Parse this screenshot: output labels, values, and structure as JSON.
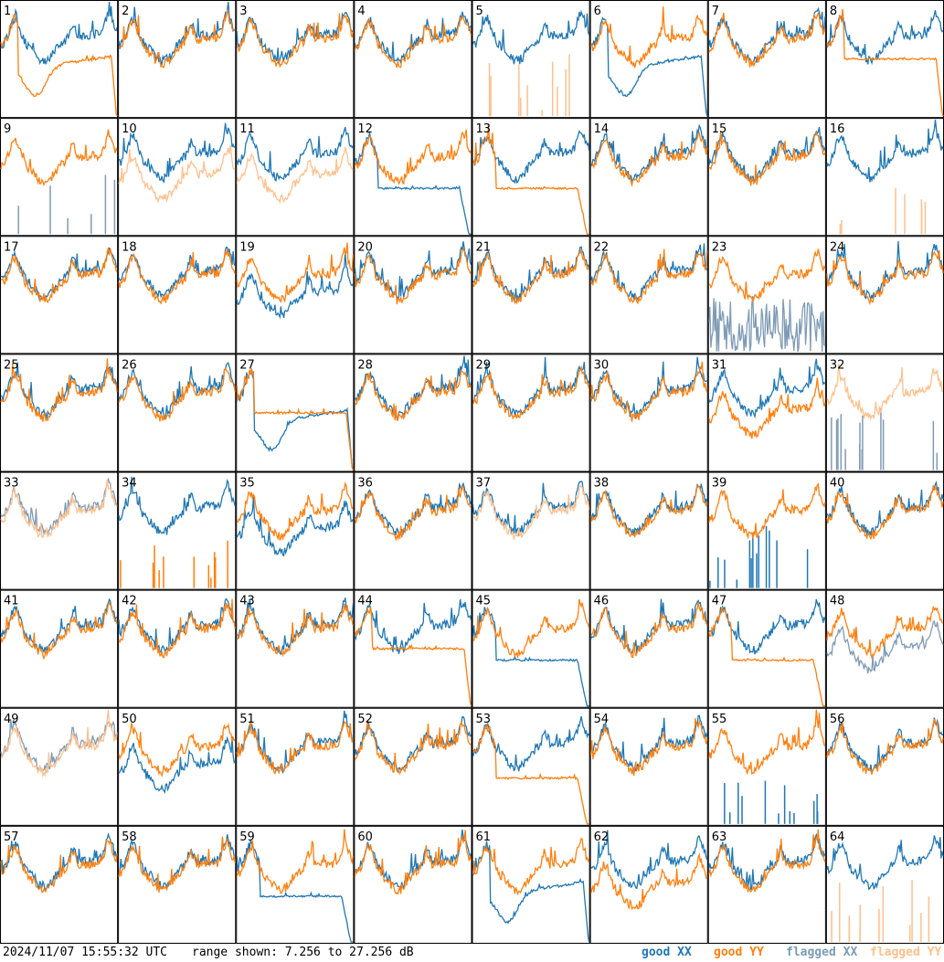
{
  "footer": {
    "timestamp": "2024/11/07 15:55:32 UTC",
    "range_text": "range shown: 7.256 to 27.256 dB"
  },
  "legend": {
    "good_xx": "good XX",
    "good_yy": "good YY",
    "flagged_xx": "flagged XX",
    "flagged_yy": "flagged YY"
  },
  "colors": {
    "good_xx": "#1f77b4",
    "good_yy": "#ff7f0e",
    "flagged_xx": "#7f9bb5",
    "flagged_yy": "#ffc08c"
  },
  "chart_data": {
    "type": "line",
    "layout": "8x8 small multiples",
    "y_range_db": [
      7.256,
      27.256
    ],
    "series_names": [
      "good XX",
      "good YY",
      "flagged XX",
      "flagged YY"
    ],
    "panels": [
      {
        "id": "1",
        "xx": {
          "state": "good",
          "shape": "normal"
        },
        "yy": {
          "state": "good",
          "shape": "sag"
        }
      },
      {
        "id": "2",
        "xx": {
          "state": "good",
          "shape": "normal"
        },
        "yy": {
          "state": "good",
          "shape": "normal"
        }
      },
      {
        "id": "3",
        "xx": {
          "state": "good",
          "shape": "normal"
        },
        "yy": {
          "state": "good",
          "shape": "normal"
        }
      },
      {
        "id": "4",
        "xx": {
          "state": "good",
          "shape": "normal"
        },
        "yy": {
          "state": "good",
          "shape": "normal"
        }
      },
      {
        "id": "5",
        "xx": {
          "state": "good",
          "shape": "normal"
        },
        "yy": {
          "state": "flagged",
          "shape": "spikes"
        }
      },
      {
        "id": "6",
        "xx": {
          "state": "good",
          "shape": "sag"
        },
        "yy": {
          "state": "good",
          "shape": "normal"
        }
      },
      {
        "id": "7",
        "xx": {
          "state": "good",
          "shape": "normal"
        },
        "yy": {
          "state": "good",
          "shape": "normal"
        }
      },
      {
        "id": "8",
        "xx": {
          "state": "good",
          "shape": "normal"
        },
        "yy": {
          "state": "good",
          "shape": "plateau"
        }
      },
      {
        "id": "9",
        "xx": {
          "state": "flagged",
          "shape": "spikes"
        },
        "yy": {
          "state": "good",
          "shape": "normal"
        }
      },
      {
        "id": "10",
        "xx": {
          "state": "good",
          "shape": "normal"
        },
        "yy": {
          "state": "flagged",
          "shape": "low"
        }
      },
      {
        "id": "11",
        "xx": {
          "state": "good",
          "shape": "normal"
        },
        "yy": {
          "state": "flagged",
          "shape": "low"
        }
      },
      {
        "id": "12",
        "xx": {
          "state": "good",
          "shape": "drop"
        },
        "yy": {
          "state": "good",
          "shape": "normal"
        }
      },
      {
        "id": "13",
        "xx": {
          "state": "good",
          "shape": "normal"
        },
        "yy": {
          "state": "good",
          "shape": "drop"
        }
      },
      {
        "id": "14",
        "xx": {
          "state": "good",
          "shape": "normal"
        },
        "yy": {
          "state": "good",
          "shape": "normal"
        }
      },
      {
        "id": "15",
        "xx": {
          "state": "good",
          "shape": "normal"
        },
        "yy": {
          "state": "good",
          "shape": "normal"
        }
      },
      {
        "id": "16",
        "xx": {
          "state": "good",
          "shape": "normal"
        },
        "yy": {
          "state": "flagged",
          "shape": "spikes"
        }
      },
      {
        "id": "17",
        "xx": {
          "state": "good",
          "shape": "normal"
        },
        "yy": {
          "state": "good",
          "shape": "normal"
        }
      },
      {
        "id": "18",
        "xx": {
          "state": "good",
          "shape": "normal"
        },
        "yy": {
          "state": "good",
          "shape": "normal"
        }
      },
      {
        "id": "19",
        "xx": {
          "state": "good",
          "shape": "low"
        },
        "yy": {
          "state": "good",
          "shape": "normal"
        }
      },
      {
        "id": "20",
        "xx": {
          "state": "good",
          "shape": "normal"
        },
        "yy": {
          "state": "good",
          "shape": "normal"
        }
      },
      {
        "id": "21",
        "xx": {
          "state": "good",
          "shape": "normal"
        },
        "yy": {
          "state": "good",
          "shape": "normal"
        }
      },
      {
        "id": "22",
        "xx": {
          "state": "good",
          "shape": "normal"
        },
        "yy": {
          "state": "good",
          "shape": "normal"
        }
      },
      {
        "id": "23",
        "xx": {
          "state": "flagged",
          "shape": "noisy"
        },
        "yy": {
          "state": "good",
          "shape": "normal"
        }
      },
      {
        "id": "24",
        "xx": {
          "state": "good",
          "shape": "normal"
        },
        "yy": {
          "state": "good",
          "shape": "normal"
        }
      },
      {
        "id": "25",
        "xx": {
          "state": "good",
          "shape": "normal"
        },
        "yy": {
          "state": "good",
          "shape": "normal"
        }
      },
      {
        "id": "26",
        "xx": {
          "state": "good",
          "shape": "normal"
        },
        "yy": {
          "state": "good",
          "shape": "normal"
        }
      },
      {
        "id": "27",
        "xx": {
          "state": "good",
          "shape": "sag"
        },
        "yy": {
          "state": "good",
          "shape": "plateau"
        }
      },
      {
        "id": "28",
        "xx": {
          "state": "good",
          "shape": "normal"
        },
        "yy": {
          "state": "good",
          "shape": "normal"
        }
      },
      {
        "id": "29",
        "xx": {
          "state": "good",
          "shape": "normal"
        },
        "yy": {
          "state": "good",
          "shape": "normal"
        }
      },
      {
        "id": "30",
        "xx": {
          "state": "good",
          "shape": "normal"
        },
        "yy": {
          "state": "good",
          "shape": "normal"
        }
      },
      {
        "id": "31",
        "xx": {
          "state": "good",
          "shape": "normal"
        },
        "yy": {
          "state": "good",
          "shape": "low"
        }
      },
      {
        "id": "32",
        "xx": {
          "state": "flagged",
          "shape": "spikes"
        },
        "yy": {
          "state": "flagged",
          "shape": "normal"
        }
      },
      {
        "id": "33",
        "xx": {
          "state": "flagged",
          "shape": "normal"
        },
        "yy": {
          "state": "flagged",
          "shape": "normal"
        }
      },
      {
        "id": "34",
        "xx": {
          "state": "good",
          "shape": "normal"
        },
        "yy": {
          "state": "good",
          "shape": "spikes"
        }
      },
      {
        "id": "35",
        "xx": {
          "state": "good",
          "shape": "low"
        },
        "yy": {
          "state": "good",
          "shape": "normal"
        }
      },
      {
        "id": "36",
        "xx": {
          "state": "good",
          "shape": "normal"
        },
        "yy": {
          "state": "good",
          "shape": "normal"
        }
      },
      {
        "id": "37",
        "xx": {
          "state": "good",
          "shape": "normal"
        },
        "yy": {
          "state": "flagged",
          "shape": "normal"
        }
      },
      {
        "id": "38",
        "xx": {
          "state": "good",
          "shape": "normal"
        },
        "yy": {
          "state": "good",
          "shape": "normal"
        }
      },
      {
        "id": "39",
        "xx": {
          "state": "good",
          "shape": "spikes"
        },
        "yy": {
          "state": "good",
          "shape": "normal"
        }
      },
      {
        "id": "40",
        "xx": {
          "state": "good",
          "shape": "normal"
        },
        "yy": {
          "state": "good",
          "shape": "normal"
        }
      },
      {
        "id": "41",
        "xx": {
          "state": "good",
          "shape": "normal"
        },
        "yy": {
          "state": "good",
          "shape": "normal"
        }
      },
      {
        "id": "42",
        "xx": {
          "state": "good",
          "shape": "normal"
        },
        "yy": {
          "state": "good",
          "shape": "normal"
        }
      },
      {
        "id": "43",
        "xx": {
          "state": "good",
          "shape": "normal"
        },
        "yy": {
          "state": "good",
          "shape": "normal"
        }
      },
      {
        "id": "44",
        "xx": {
          "state": "good",
          "shape": "normal"
        },
        "yy": {
          "state": "good",
          "shape": "plateau"
        }
      },
      {
        "id": "45",
        "xx": {
          "state": "good",
          "shape": "drop"
        },
        "yy": {
          "state": "good",
          "shape": "normal"
        }
      },
      {
        "id": "46",
        "xx": {
          "state": "good",
          "shape": "normal"
        },
        "yy": {
          "state": "good",
          "shape": "normal"
        }
      },
      {
        "id": "47",
        "xx": {
          "state": "good",
          "shape": "normal"
        },
        "yy": {
          "state": "good",
          "shape": "drop"
        }
      },
      {
        "id": "48",
        "xx": {
          "state": "flagged",
          "shape": "low"
        },
        "yy": {
          "state": "good",
          "shape": "normal"
        }
      },
      {
        "id": "49",
        "xx": {
          "state": "flagged",
          "shape": "normal"
        },
        "yy": {
          "state": "flagged",
          "shape": "normal"
        }
      },
      {
        "id": "50",
        "xx": {
          "state": "good",
          "shape": "low"
        },
        "yy": {
          "state": "good",
          "shape": "normal"
        }
      },
      {
        "id": "51",
        "xx": {
          "state": "good",
          "shape": "normal"
        },
        "yy": {
          "state": "good",
          "shape": "normal"
        }
      },
      {
        "id": "52",
        "xx": {
          "state": "good",
          "shape": "normal"
        },
        "yy": {
          "state": "good",
          "shape": "normal"
        }
      },
      {
        "id": "53",
        "xx": {
          "state": "good",
          "shape": "normal"
        },
        "yy": {
          "state": "good",
          "shape": "drop"
        }
      },
      {
        "id": "54",
        "xx": {
          "state": "good",
          "shape": "normal"
        },
        "yy": {
          "state": "good",
          "shape": "normal"
        }
      },
      {
        "id": "55",
        "xx": {
          "state": "good",
          "shape": "spikes"
        },
        "yy": {
          "state": "good",
          "shape": "normal"
        }
      },
      {
        "id": "56",
        "xx": {
          "state": "good",
          "shape": "normal"
        },
        "yy": {
          "state": "good",
          "shape": "normal"
        }
      },
      {
        "id": "57",
        "xx": {
          "state": "good",
          "shape": "normal"
        },
        "yy": {
          "state": "good",
          "shape": "normal"
        }
      },
      {
        "id": "58",
        "xx": {
          "state": "good",
          "shape": "normal"
        },
        "yy": {
          "state": "good",
          "shape": "normal"
        }
      },
      {
        "id": "59",
        "xx": {
          "state": "good",
          "shape": "drop"
        },
        "yy": {
          "state": "good",
          "shape": "normal"
        }
      },
      {
        "id": "60",
        "xx": {
          "state": "good",
          "shape": "normal"
        },
        "yy": {
          "state": "good",
          "shape": "normal"
        }
      },
      {
        "id": "61",
        "xx": {
          "state": "good",
          "shape": "sag"
        },
        "yy": {
          "state": "good",
          "shape": "normal"
        }
      },
      {
        "id": "62",
        "xx": {
          "state": "good",
          "shape": "normal"
        },
        "yy": {
          "state": "good",
          "shape": "low"
        }
      },
      {
        "id": "63",
        "xx": {
          "state": "good",
          "shape": "normal"
        },
        "yy": {
          "state": "good",
          "shape": "normal"
        }
      },
      {
        "id": "64",
        "xx": {
          "state": "good",
          "shape": "normal"
        },
        "yy": {
          "state": "flagged",
          "shape": "spikes"
        }
      }
    ]
  }
}
